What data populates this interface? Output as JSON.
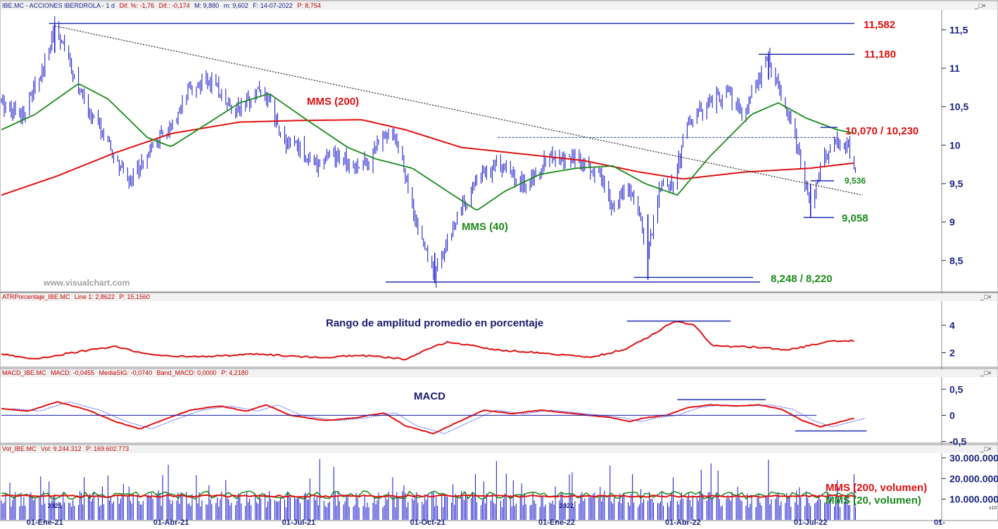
{
  "window_buttons": "_□×",
  "panels": {
    "price": {
      "header_name": "IBE.MC - ACCIONES IBERDROLA - 1 d",
      "header_fields": [
        "Dif. %: -1,76",
        "Dif.: -0,174",
        "M: 9,880",
        "m: 9,602",
        "F: 14-07-2022",
        "P: 8,754"
      ],
      "y_ticks": [
        "11,5",
        "11",
        "10,5",
        "10",
        "9,5",
        "9",
        "8,5"
      ],
      "y_tick_values": [
        11.5,
        11,
        10.5,
        10,
        9.5,
        9,
        8.5
      ],
      "ylim": [
        8.1,
        11.75
      ],
      "series_labels": {
        "ma200": "MMS (200)",
        "ma40": "MMS (40)"
      },
      "levels": [
        {
          "label": "11,582",
          "value": 11.582,
          "style": "red"
        },
        {
          "label": "11,180",
          "value": 11.18,
          "style": "red"
        },
        {
          "label": "10,070 / 10,230",
          "value": 10.23,
          "style": "red"
        },
        {
          "label": "9,536",
          "value": 9.536,
          "style": "green-sm"
        },
        {
          "label": "9,058",
          "value": 9.058,
          "style": "green"
        },
        {
          "label": "8,248 / 8,220",
          "value": 8.22,
          "style": "green"
        }
      ],
      "watermark": "www.visualchart.com"
    },
    "atr": {
      "header_name": "ATRPorcentaje_IBE.MC",
      "header_fields": [
        "Line 1: 2,8622",
        "P: 15,1560"
      ],
      "title": "Rango de amplitud promedio en porcentaje",
      "y_ticks": [
        "4",
        "2"
      ],
      "y_tick_values": [
        4,
        2
      ],
      "ylim": [
        1,
        5.7
      ]
    },
    "macd": {
      "header_name": "MACD_IBE.MC",
      "header_fields": [
        "MACD: -0,0455",
        "MediaSIG: -0,0740",
        "Band_MACD: 0,0000",
        "P: 4,2180"
      ],
      "title": "MACD",
      "y_ticks": [
        "0,5",
        "0",
        "-0,5"
      ],
      "y_tick_values": [
        0.5,
        0,
        -0.5
      ],
      "ylim": [
        -0.52,
        0.72
      ]
    },
    "vol": {
      "header_name": "Vol_IBE.MC",
      "header_fields": [
        "Vol: 9.244.312",
        "P: 169.602.773"
      ],
      "y_ticks": [
        "30.000.000",
        "20.000.000",
        "10.000.000"
      ],
      "y_tick_values": [
        30000000,
        20000000,
        10000000
      ],
      "ylim": [
        0,
        32000000
      ],
      "series_labels": {
        "ma200": "MMS (200, volumen)",
        "ma20": "MMS (20, volumen)"
      },
      "corner_label": "x10"
    }
  },
  "x_axis": {
    "labels": [
      "01-Ene-21",
      "01-Abr-21",
      "01-Jul-21",
      "01-Oct-21",
      "01-Ene-22",
      "01-Abr-22",
      "01-Jul-22",
      "01-"
    ],
    "year_marks": [
      "2021",
      "2022"
    ]
  },
  "colors": {
    "candle": "#1010c8",
    "ma200": "#e01010",
    "ma40": "#1a8a1a",
    "axis": "#1a237e",
    "level_line": "#2030b0",
    "signal": "#4a5cff",
    "header_red": "#c00000"
  },
  "chart_data": {
    "type": "candlestick",
    "price_anchors": [
      [
        "2020-12-01",
        10.55
      ],
      [
        "2020-12-15",
        10.4
      ],
      [
        "2020-12-31",
        10.95
      ],
      [
        "2021-01-08",
        11.58
      ],
      [
        "2021-01-20",
        11.0
      ],
      [
        "2021-01-30",
        10.5
      ],
      [
        "2021-02-10",
        10.2
      ],
      [
        "2021-02-20",
        9.8
      ],
      [
        "2021-03-01",
        9.55
      ],
      [
        "2021-03-10",
        9.75
      ],
      [
        "2021-03-22",
        10.05
      ],
      [
        "2021-04-05",
        10.3
      ],
      [
        "2021-04-15",
        10.75
      ],
      [
        "2021-04-28",
        10.85
      ],
      [
        "2021-05-10",
        10.6
      ],
      [
        "2021-05-20",
        10.45
      ],
      [
        "2021-06-02",
        10.75
      ],
      [
        "2021-06-10",
        10.55
      ],
      [
        "2021-06-20",
        10.05
      ],
      [
        "2021-06-30",
        10.0
      ],
      [
        "2021-07-12",
        9.75
      ],
      [
        "2021-07-25",
        9.85
      ],
      [
        "2021-08-10",
        9.75
      ],
      [
        "2021-08-20",
        9.78
      ],
      [
        "2021-08-31",
        10.2
      ],
      [
        "2021-09-08",
        10.1
      ],
      [
        "2021-09-15",
        9.6
      ],
      [
        "2021-09-22",
        9.0
      ],
      [
        "2021-10-01",
        8.55
      ],
      [
        "2021-10-06",
        8.3
      ],
      [
        "2021-10-20",
        9.0
      ],
      [
        "2021-11-05",
        9.55
      ],
      [
        "2021-11-20",
        9.75
      ],
      [
        "2021-12-10",
        9.45
      ],
      [
        "2021-12-25",
        9.85
      ],
      [
        "2022-01-10",
        9.8
      ],
      [
        "2022-01-20",
        9.75
      ],
      [
        "2022-02-01",
        9.6
      ],
      [
        "2022-02-10",
        9.2
      ],
      [
        "2022-02-22",
        9.45
      ],
      [
        "2022-03-01",
        9.1
      ],
      [
        "2022-03-07",
        8.6
      ],
      [
        "2022-03-15",
        9.45
      ],
      [
        "2022-03-25",
        9.5
      ],
      [
        "2022-04-05",
        10.3
      ],
      [
        "2022-04-18",
        10.5
      ],
      [
        "2022-05-02",
        10.7
      ],
      [
        "2022-05-15",
        10.4
      ],
      [
        "2022-06-01",
        11.18
      ],
      [
        "2022-06-10",
        10.6
      ],
      [
        "2022-06-20",
        10.1
      ],
      [
        "2022-06-26",
        9.55
      ],
      [
        "2022-07-01",
        9.2
      ],
      [
        "2022-07-05",
        9.5
      ],
      [
        "2022-07-10",
        9.8
      ],
      [
        "2022-07-20",
        10.05
      ],
      [
        "2022-07-28",
        10.0
      ],
      [
        "2022-08-02",
        9.6
      ]
    ],
    "ma200_anchors": [
      [
        "2020-12-01",
        9.35
      ],
      [
        "2021-01-10",
        9.6
      ],
      [
        "2021-02-20",
        9.9
      ],
      [
        "2021-04-01",
        10.15
      ],
      [
        "2021-05-20",
        10.3
      ],
      [
        "2021-07-01",
        10.32
      ],
      [
        "2021-08-15",
        10.33
      ],
      [
        "2021-09-15",
        10.2
      ],
      [
        "2021-10-25",
        9.97
      ],
      [
        "2021-12-10",
        9.88
      ],
      [
        "2022-01-20",
        9.8
      ],
      [
        "2022-03-01",
        9.65
      ],
      [
        "2022-04-01",
        9.56
      ],
      [
        "2022-05-15",
        9.65
      ],
      [
        "2022-07-01",
        9.7
      ],
      [
        "2022-08-02",
        9.77
      ]
    ],
    "ma40_anchors": [
      [
        "2020-12-01",
        10.2
      ],
      [
        "2020-12-25",
        10.4
      ],
      [
        "2021-01-25",
        10.8
      ],
      [
        "2021-02-15",
        10.6
      ],
      [
        "2021-03-15",
        10.1
      ],
      [
        "2021-04-01",
        9.98
      ],
      [
        "2021-04-20",
        10.2
      ],
      [
        "2021-05-20",
        10.55
      ],
      [
        "2021-06-10",
        10.67
      ],
      [
        "2021-07-05",
        10.35
      ],
      [
        "2021-08-05",
        9.97
      ],
      [
        "2021-08-25",
        9.82
      ],
      [
        "2021-09-20",
        9.7
      ],
      [
        "2021-10-15",
        9.4
      ],
      [
        "2021-11-05",
        9.15
      ],
      [
        "2021-11-25",
        9.4
      ],
      [
        "2021-12-20",
        9.62
      ],
      [
        "2022-01-15",
        9.7
      ],
      [
        "2022-02-10",
        9.73
      ],
      [
        "2022-03-05",
        9.5
      ],
      [
        "2022-03-28",
        9.35
      ],
      [
        "2022-04-20",
        9.85
      ],
      [
        "2022-05-20",
        10.4
      ],
      [
        "2022-06-08",
        10.55
      ],
      [
        "2022-06-28",
        10.35
      ],
      [
        "2022-07-20",
        10.2
      ],
      [
        "2022-08-02",
        10.15
      ]
    ],
    "trendline": {
      "start": [
        "2021-01-08",
        11.55
      ],
      "end": [
        "2022-08-07",
        9.35
      ]
    },
    "atr_anchors": [
      [
        "2020-12-01",
        1.9
      ],
      [
        "2020-12-25",
        1.55
      ],
      [
        "2021-01-20",
        2.0
      ],
      [
        "2021-02-20",
        2.45
      ],
      [
        "2021-03-20",
        1.8
      ],
      [
        "2021-04-20",
        1.7
      ],
      [
        "2021-06-01",
        1.9
      ],
      [
        "2021-07-15",
        1.65
      ],
      [
        "2021-08-15",
        1.8
      ],
      [
        "2021-09-15",
        1.55
      ],
      [
        "2021-10-15",
        2.8
      ],
      [
        "2021-11-20",
        2.2
      ],
      [
        "2021-12-20",
        2.0
      ],
      [
        "2022-01-25",
        1.65
      ],
      [
        "2022-02-20",
        2.3
      ],
      [
        "2022-03-10",
        3.3
      ],
      [
        "2022-03-25",
        4.25
      ],
      [
        "2022-04-08",
        4.1
      ],
      [
        "2022-04-22",
        2.5
      ],
      [
        "2022-05-25",
        2.4
      ],
      [
        "2022-06-15",
        2.2
      ],
      [
        "2022-07-15",
        2.85
      ],
      [
        "2022-08-02",
        2.86
      ]
    ],
    "macd_anchors": [
      [
        "2020-12-01",
        0.13
      ],
      [
        "2020-12-20",
        0.08
      ],
      [
        "2021-01-10",
        0.26
      ],
      [
        "2021-02-01",
        0.1
      ],
      [
        "2021-02-20",
        -0.12
      ],
      [
        "2021-03-10",
        -0.26
      ],
      [
        "2021-03-25",
        -0.1
      ],
      [
        "2021-04-15",
        0.1
      ],
      [
        "2021-05-05",
        0.18
      ],
      [
        "2021-05-25",
        0.08
      ],
      [
        "2021-06-08",
        0.2
      ],
      [
        "2021-06-25",
        0.0
      ],
      [
        "2021-07-20",
        -0.1
      ],
      [
        "2021-08-10",
        -0.05
      ],
      [
        "2021-08-31",
        0.05
      ],
      [
        "2021-09-15",
        -0.2
      ],
      [
        "2021-10-05",
        -0.35
      ],
      [
        "2021-10-25",
        -0.1
      ],
      [
        "2021-11-10",
        0.1
      ],
      [
        "2021-11-30",
        0.03
      ],
      [
        "2021-12-20",
        0.1
      ],
      [
        "2022-01-10",
        0.04
      ],
      [
        "2022-01-25",
        0.0
      ],
      [
        "2022-02-10",
        -0.05
      ],
      [
        "2022-02-22",
        -0.12
      ],
      [
        "2022-03-05",
        -0.05
      ],
      [
        "2022-03-20",
        0.0
      ],
      [
        "2022-04-05",
        0.15
      ],
      [
        "2022-04-20",
        0.2
      ],
      [
        "2022-05-10",
        0.18
      ],
      [
        "2022-05-25",
        0.2
      ],
      [
        "2022-06-10",
        0.12
      ],
      [
        "2022-06-25",
        -0.1
      ],
      [
        "2022-07-08",
        -0.22
      ],
      [
        "2022-07-20",
        -0.14
      ],
      [
        "2022-08-02",
        -0.05
      ]
    ],
    "volume_ma20": 12000000,
    "volume_ma200": 11500000
  }
}
